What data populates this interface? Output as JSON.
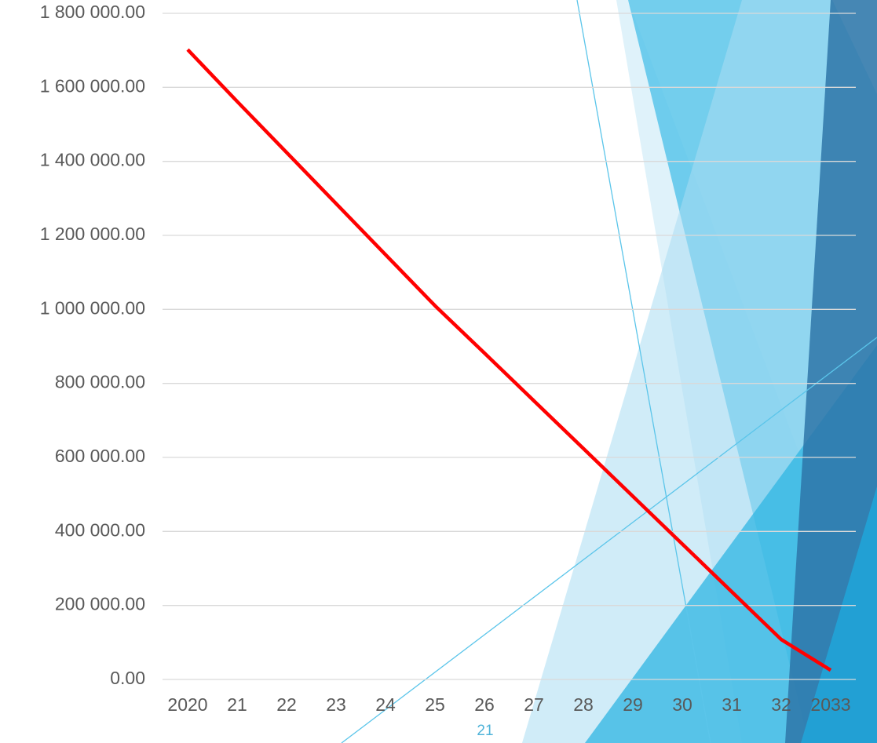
{
  "chart_data": {
    "type": "line",
    "categories": [
      "2020",
      "21",
      "22",
      "23",
      "24",
      "25",
      "26",
      "27",
      "28",
      "29",
      "30",
      "31",
      "32",
      "2033"
    ],
    "values": [
      1702000,
      1562000,
      1424000,
      1286000,
      1148000,
      1010000,
      882000,
      753000,
      624000,
      495000,
      366000,
      237000,
      108000,
      25000
    ],
    "color": "#ff0000",
    "ylim": [
      0,
      1800000
    ],
    "yticks": [
      {
        "value": 0,
        "label": "0.00"
      },
      {
        "value": 200000,
        "label": "200 000.00"
      },
      {
        "value": 400000,
        "label": "400 000.00"
      },
      {
        "value": 600000,
        "label": "600 000.00"
      },
      {
        "value": 800000,
        "label": "800 000.00"
      },
      {
        "value": 1000000,
        "label": "1 000 000.00"
      },
      {
        "value": 1200000,
        "label": "1 200 000.00"
      },
      {
        "value": 1400000,
        "label": "1 400 000.00"
      },
      {
        "value": 1600000,
        "label": "1 600 000.00"
      },
      {
        "value": 1800000,
        "label": "1 800 000.00"
      }
    ],
    "grid": true
  },
  "slide": {
    "page_number": "21"
  }
}
